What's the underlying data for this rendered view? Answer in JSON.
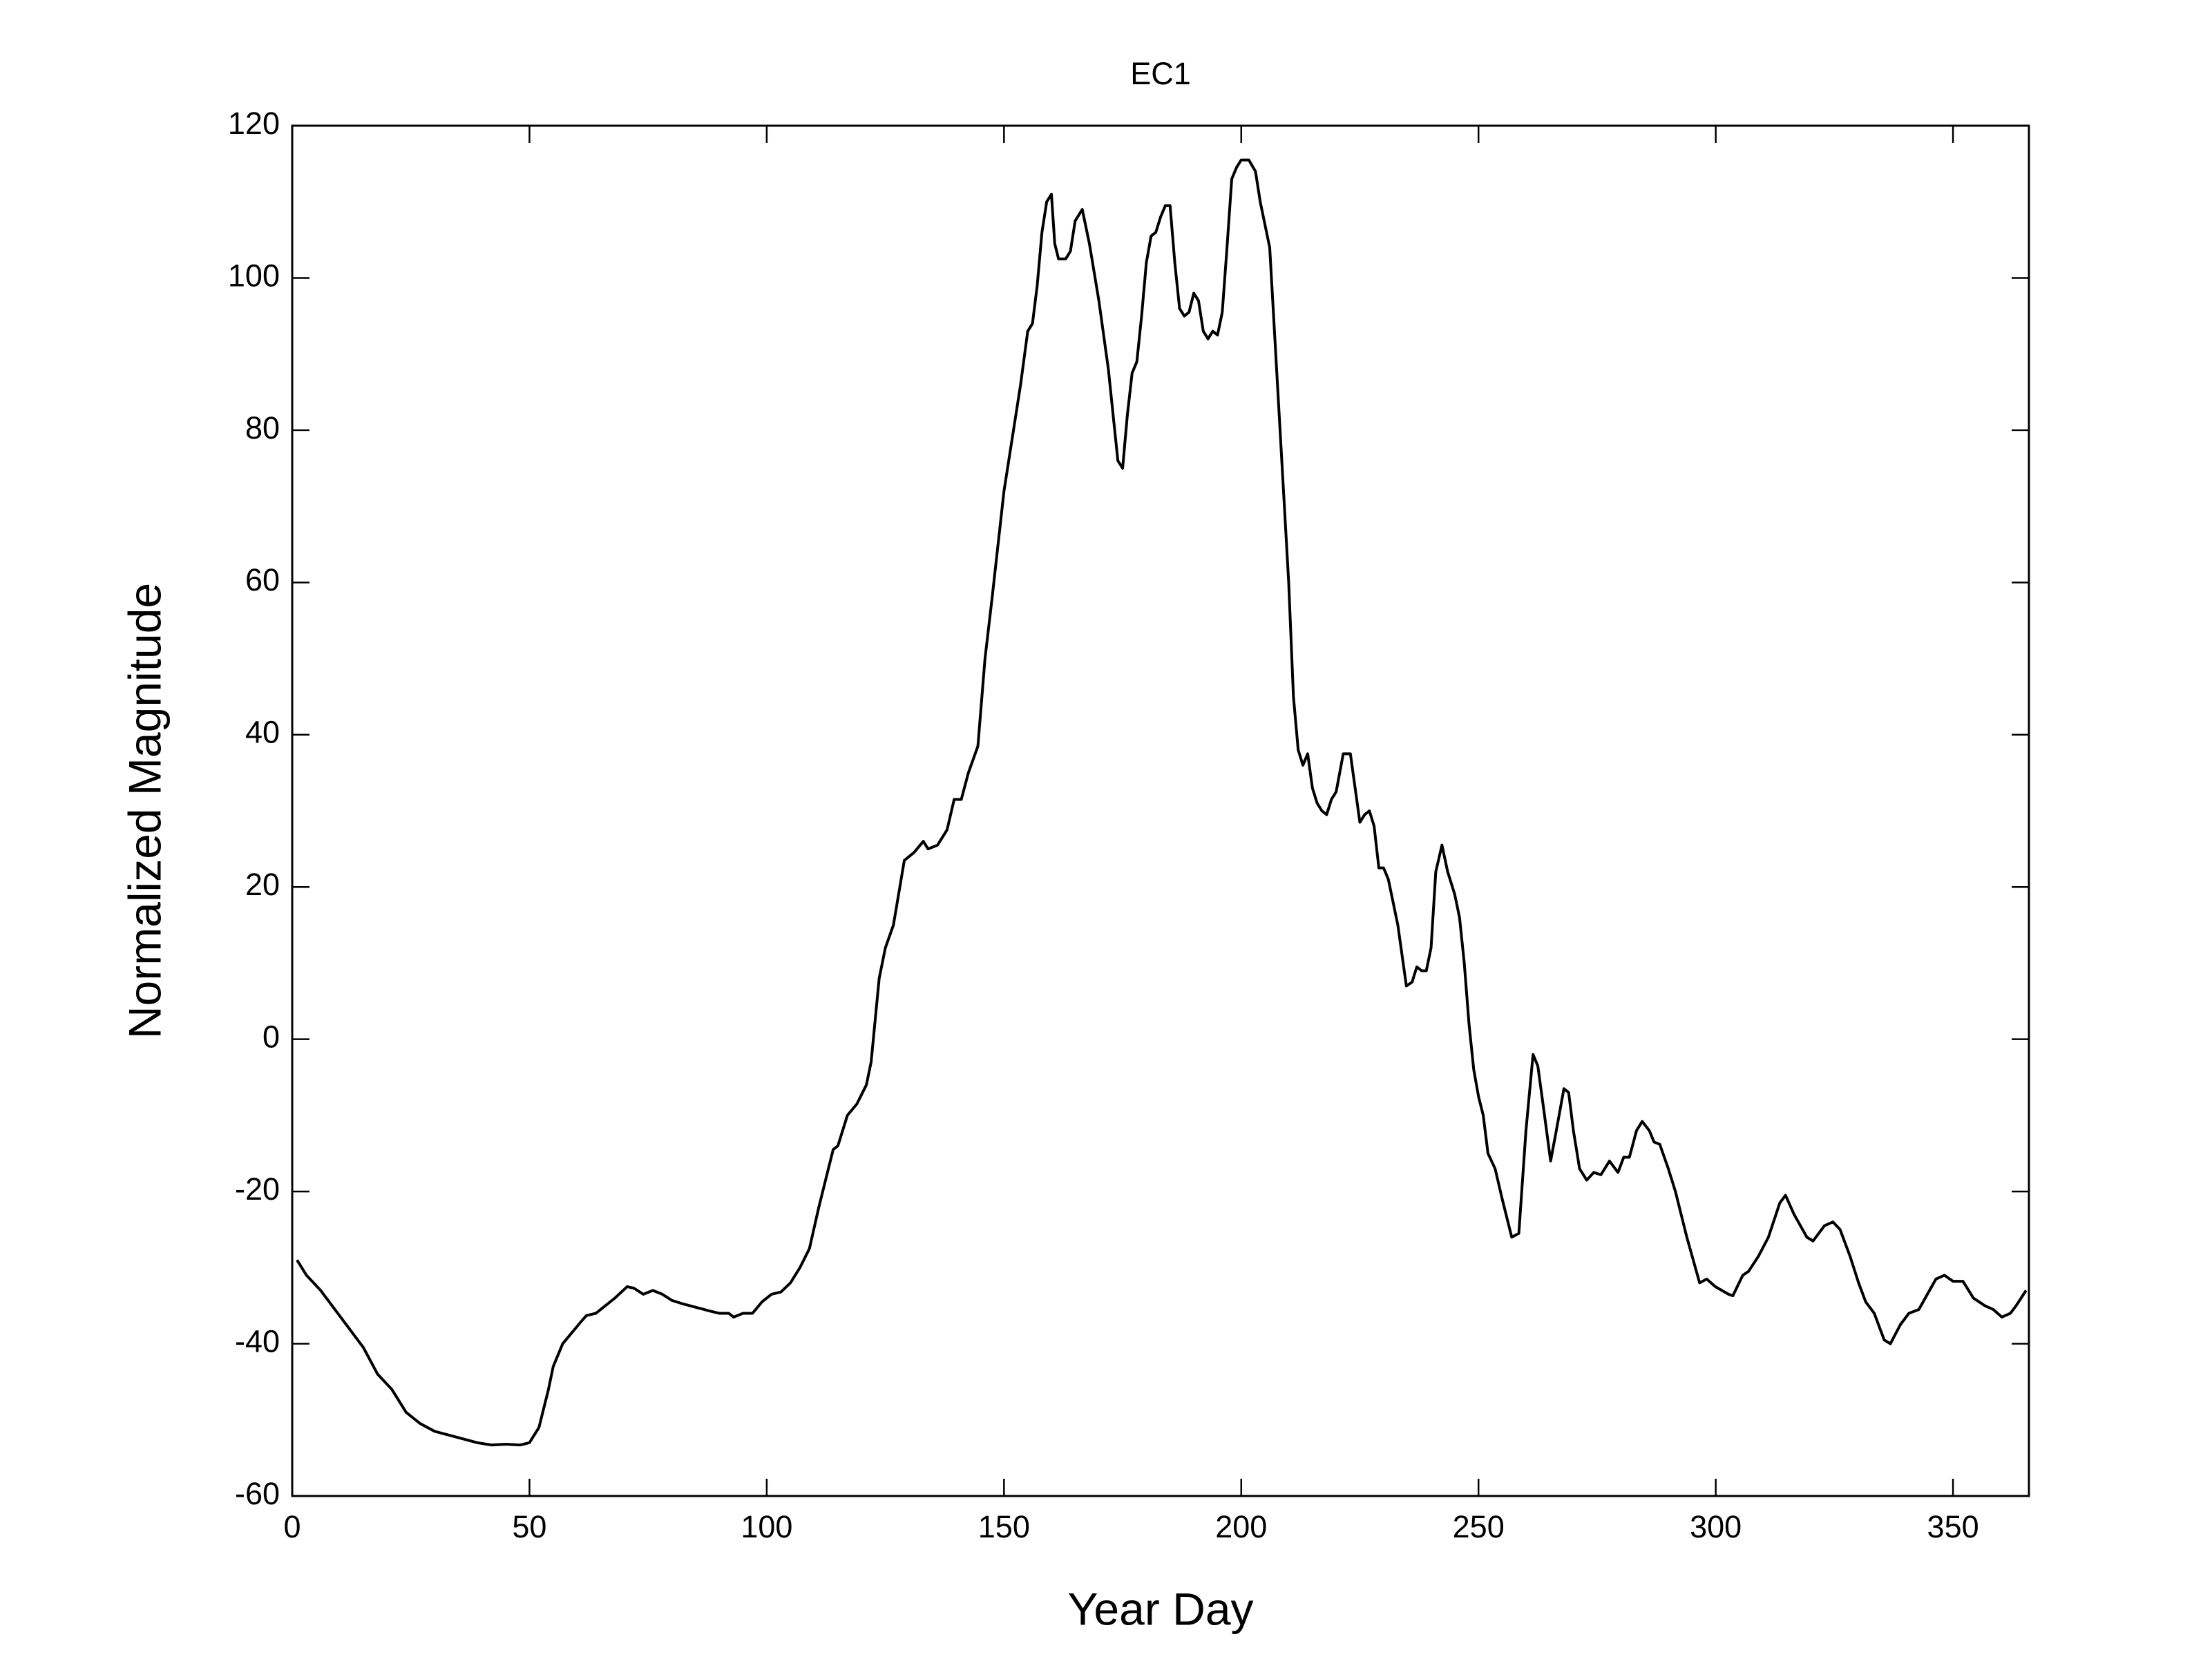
{
  "chart_data": {
    "type": "line",
    "title": "EC1",
    "xlabel": "Year Day",
    "ylabel": "Normalized Magnitude",
    "x": [
      1,
      3,
      6,
      9,
      12,
      15,
      18,
      21,
      24,
      27,
      30,
      33,
      36,
      39,
      42,
      45,
      48,
      50,
      52,
      54,
      55,
      57,
      59,
      61,
      62,
      64,
      66,
      68,
      70.6,
      72,
      74,
      76,
      78,
      80,
      82,
      85,
      88,
      90,
      92,
      93,
      95,
      97,
      99,
      101,
      103,
      105,
      107,
      109,
      111,
      113,
      114,
      115,
      117,
      119,
      121,
      122,
      123.7,
      125,
      126.7,
      129,
      131,
      133,
      134,
      136,
      138,
      139.5,
      141,
      142.5,
      144.5,
      146,
      147.5,
      150,
      152,
      153.5,
      155,
      156,
      157,
      158,
      159,
      160,
      160.7,
      161.5,
      163,
      164,
      165,
      166.5,
      168,
      170,
      172,
      174,
      175,
      176,
      177,
      178,
      179,
      180,
      181,
      182,
      183,
      184,
      185,
      186,
      187,
      188,
      189,
      190,
      191,
      192,
      193,
      194,
      195,
      196,
      197,
      198,
      199,
      200,
      201.6,
      203,
      204,
      206,
      208,
      210,
      211,
      212,
      213,
      214,
      215,
      216,
      217,
      218,
      219,
      220,
      221.5,
      223,
      224,
      225,
      226,
      227,
      228,
      229,
      230,
      231,
      233,
      234.8,
      236,
      237,
      238,
      239,
      240,
      241,
      242.3,
      243.5,
      245,
      246,
      247,
      248,
      249,
      250,
      251,
      252,
      253.5,
      255,
      257,
      258.5,
      260,
      261.5,
      262.5,
      263.7,
      265.2,
      266.4,
      268,
      269,
      270,
      271.3,
      272.8,
      274.3,
      275.8,
      277.6,
      279.4,
      280.6,
      281.8,
      283.3,
      284.5,
      286,
      287,
      288.2,
      290,
      291.5,
      293.9,
      296.6,
      298.1,
      299.9,
      302.7,
      303.6,
      305.7,
      306.9,
      309,
      311.1,
      313.5,
      314.7,
      316.5,
      319.2,
      320.5,
      322.9,
      324.7,
      326.2,
      328.3,
      330.1,
      331.6,
      333.4,
      335.5,
      336.8,
      338.9,
      340.7,
      342.8,
      344.6,
      346.4,
      348.2,
      350,
      352.1,
      354.3,
      356.7,
      358.5,
      360.3,
      362.1,
      363.3,
      365.4
    ],
    "values": [
      -29,
      -31,
      -33,
      -35.5,
      -38,
      -40.5,
      -44,
      -46,
      -49,
      -50.5,
      -51.5,
      -52,
      -52.5,
      -53,
      -53.3,
      -53.2,
      -53.3,
      -53,
      -51,
      -46,
      -43,
      -40,
      -38.5,
      -37,
      -36.3,
      -36,
      -35,
      -34,
      -32.5,
      -32.7,
      -33.5,
      -33,
      -33.5,
      -34.3,
      -34.7,
      -35.2,
      -35.7,
      -36,
      -36,
      -36.5,
      -36,
      -36,
      -34.5,
      -33.5,
      -33.2,
      -32,
      -30,
      -27.5,
      -22,
      -17,
      -14.5,
      -14,
      -10,
      -8.5,
      -6,
      -3,
      8,
      12,
      15,
      23.5,
      24.5,
      26,
      25,
      25.5,
      27.5,
      31.5,
      31.5,
      35,
      38.5,
      50,
      58,
      72,
      80,
      86,
      93,
      94,
      99,
      106,
      110,
      111,
      104.5,
      102.5,
      102.5,
      103.5,
      107.5,
      109,
      104.5,
      97,
      88,
      76,
      75,
      82,
      87.5,
      89,
      95,
      102,
      105.5,
      106,
      108,
      109.5,
      109.5,
      102,
      96,
      95,
      95.5,
      98,
      97,
      93,
      92,
      93,
      92.5,
      95.5,
      104,
      113,
      114.5,
      115.5,
      115.5,
      114,
      110,
      104,
      82,
      60,
      45,
      38,
      36,
      37.5,
      33,
      31,
      30,
      29.5,
      31.5,
      32.5,
      37.5,
      37.5,
      33,
      28.5,
      29.5,
      30,
      28,
      22.5,
      22.5,
      21,
      15,
      7,
      7.5,
      9.5,
      9,
      9,
      12,
      22,
      25.5,
      22,
      19,
      16,
      10,
      2,
      -4,
      -7.5,
      -10,
      -15,
      -17,
      -21,
      -26,
      -25.5,
      -12,
      -2,
      -3.5,
      -9,
      -16,
      -12,
      -6.5,
      -7,
      -12,
      -17,
      -18.5,
      -17.5,
      -17.8,
      -16,
      -17.5,
      -15.5,
      -15.5,
      -12,
      -10.8,
      -12,
      -13.5,
      -13.8,
      -17,
      -20,
      -26,
      -32,
      -31.5,
      -32.5,
      -33.5,
      -33.7,
      -31,
      -30.5,
      -28.5,
      -26,
      -21.5,
      -20.5,
      -23,
      -26,
      -26.5,
      -24.5,
      -24,
      -25,
      -28.5,
      -32,
      -34.5,
      -36,
      -39.5,
      -40,
      -37.5,
      -36,
      -35.5,
      -33.5,
      -31.5,
      -31,
      -31.8,
      -31.8,
      -34,
      -35,
      -35.5,
      -36.5,
      -36,
      -35,
      -33
    ],
    "color": "#000000",
    "xlim": [
      0,
      366
    ],
    "xticks": [
      0,
      50,
      100,
      150,
      200,
      250,
      300,
      350
    ],
    "ylim": [
      -60,
      120
    ],
    "yticks": [
      -60,
      -40,
      -20,
      0,
      20,
      40,
      60,
      80,
      100,
      120
    ]
  }
}
